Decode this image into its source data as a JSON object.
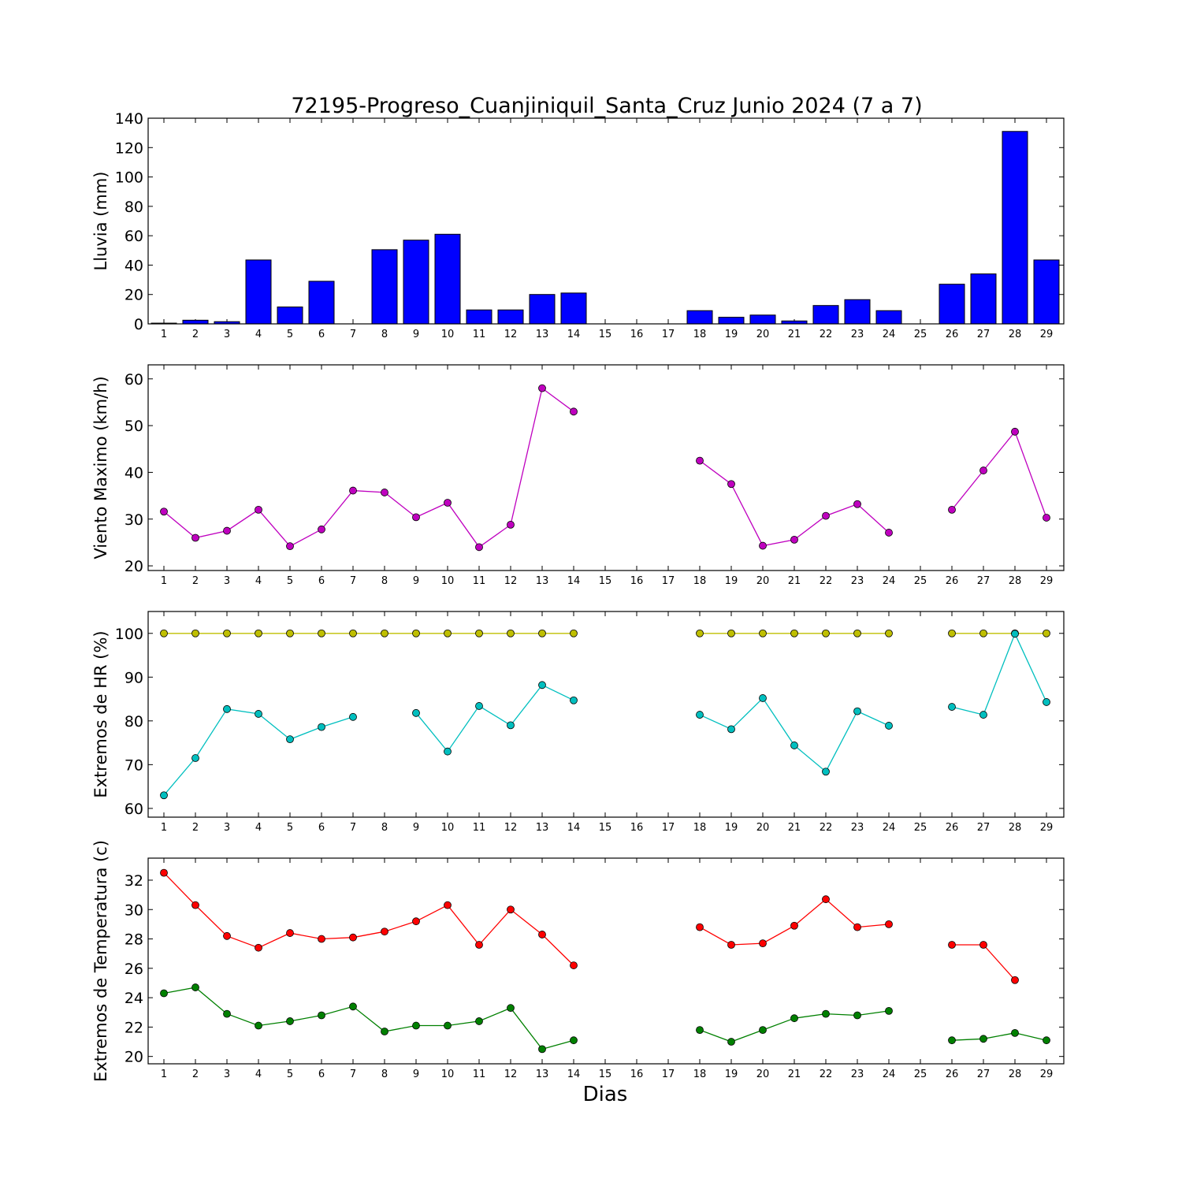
{
  "title": "72195-Progreso_Cuanjiniquil_Santa_Cruz Junio 2024  (7 a 7)",
  "xlabel": "Dias",
  "days": [
    1,
    2,
    3,
    4,
    5,
    6,
    7,
    8,
    9,
    10,
    11,
    12,
    13,
    14,
    15,
    16,
    17,
    18,
    19,
    20,
    21,
    22,
    23,
    24,
    25,
    26,
    27,
    28,
    29
  ],
  "chart_data": [
    {
      "type": "bar",
      "ylabel": "Lluvia (mm)",
      "ylim": [
        0,
        140
      ],
      "yticks": [
        0,
        20,
        40,
        60,
        80,
        100,
        120,
        140
      ],
      "series": [
        {
          "color": "#0000ff",
          "values": [
            0.5,
            2.5,
            1.5,
            43.5,
            11.5,
            29,
            null,
            50.5,
            57,
            61,
            9.5,
            9.5,
            20,
            21,
            null,
            null,
            null,
            9,
            4.5,
            6,
            2,
            12.5,
            16.5,
            9,
            null,
            27,
            34,
            131,
            43.5
          ]
        }
      ]
    },
    {
      "type": "line",
      "ylabel": "Viento Maximo (km/h)",
      "ylim": [
        19,
        63
      ],
      "yticks": [
        20,
        30,
        40,
        50,
        60
      ],
      "series": [
        {
          "color": "#bf00bf",
          "values": [
            31.6,
            26,
            27.5,
            32,
            24.2,
            27.8,
            36.1,
            35.7,
            30.4,
            33.5,
            24,
            28.8,
            58,
            53,
            null,
            null,
            null,
            42.5,
            37.5,
            24.3,
            25.6,
            30.7,
            33.2,
            27.1,
            null,
            32,
            40.4,
            48.7,
            30.3
          ]
        }
      ]
    },
    {
      "type": "line",
      "ylabel": "Extremos de HR (%)",
      "ylim": [
        58,
        105
      ],
      "yticks": [
        60,
        70,
        80,
        90,
        100
      ],
      "series": [
        {
          "color": "#bfbf00",
          "values": [
            100,
            100,
            100,
            100,
            100,
            100,
            100,
            100,
            100,
            100,
            100,
            100,
            100,
            100,
            null,
            null,
            null,
            100,
            100,
            100,
            100,
            100,
            100,
            100,
            null,
            100,
            100,
            100,
            100
          ]
        },
        {
          "color": "#00bfbf",
          "values": [
            63,
            71.5,
            82.7,
            81.6,
            75.8,
            78.6,
            80.9,
            null,
            81.8,
            73,
            83.4,
            79,
            88.2,
            84.7,
            null,
            null,
            null,
            81.4,
            78.1,
            85.2,
            74.4,
            68.4,
            82.2,
            78.9,
            null,
            83.2,
            81.4,
            99.9,
            84.3
          ]
        }
      ]
    },
    {
      "type": "line",
      "ylabel": "Extremos de Temperatura (c)",
      "ylim": [
        19.5,
        33.5
      ],
      "yticks": [
        20,
        22,
        24,
        26,
        28,
        30,
        32
      ],
      "series": [
        {
          "color": "#ff0000",
          "values": [
            32.5,
            30.3,
            28.2,
            27.4,
            28.4,
            28,
            28.1,
            28.5,
            29.2,
            30.3,
            27.6,
            30,
            28.3,
            26.2,
            null,
            null,
            null,
            28.8,
            27.6,
            27.7,
            28.9,
            30.7,
            28.8,
            29,
            null,
            27.6,
            27.6,
            25.2,
            null
          ]
        },
        {
          "color": "#008000",
          "values": [
            24.3,
            24.7,
            22.9,
            22.1,
            22.4,
            22.8,
            23.4,
            21.7,
            22.1,
            22.1,
            22.4,
            23.3,
            20.5,
            21.1,
            null,
            null,
            null,
            21.8,
            21,
            21.8,
            22.6,
            22.9,
            22.8,
            23.1,
            null,
            21.1,
            21.2,
            21.6,
            21.1
          ]
        }
      ]
    }
  ]
}
